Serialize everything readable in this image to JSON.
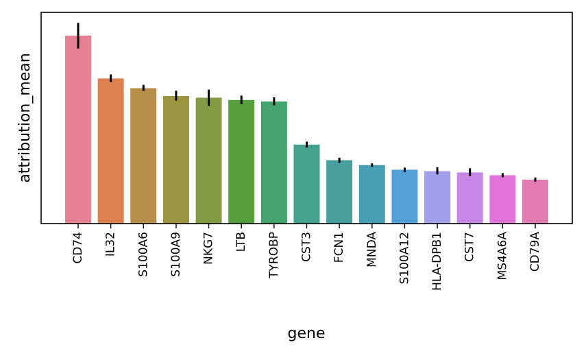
{
  "chart_data": {
    "type": "bar",
    "xlabel": "gene",
    "ylabel": "attribution_mean",
    "ylim": [
      0,
      1.0
    ],
    "y_ticks_shown": false,
    "grid": false,
    "legend": "none",
    "error_bars": true,
    "categories": [
      "CD74",
      "IL32",
      "S100A6",
      "S100A9",
      "NKG7",
      "LTB",
      "TYROBP",
      "CST3",
      "FCN1",
      "MNDA",
      "S100A12",
      "HLA-DPB1",
      "CST7",
      "MS4A6A",
      "CD79A"
    ],
    "values": [
      0.89,
      0.687,
      0.641,
      0.604,
      0.596,
      0.585,
      0.578,
      0.374,
      0.3,
      0.277,
      0.255,
      0.248,
      0.242,
      0.229,
      0.208
    ],
    "error_low": [
      0.829,
      0.67,
      0.628,
      0.582,
      0.557,
      0.565,
      0.56,
      0.36,
      0.287,
      0.268,
      0.244,
      0.233,
      0.225,
      0.219,
      0.199
    ],
    "error_high": [
      0.95,
      0.706,
      0.657,
      0.629,
      0.634,
      0.606,
      0.598,
      0.388,
      0.312,
      0.285,
      0.265,
      0.266,
      0.262,
      0.239,
      0.218
    ],
    "colors": [
      "#e68193",
      "#dc814d",
      "#b88f48",
      "#9f9440",
      "#849a42",
      "#55a03c",
      "#44a46e",
      "#44a18c",
      "#469f9c",
      "#489fb4",
      "#53a0db",
      "#a29feb",
      "#c687e6",
      "#e074d9",
      "#e27bb1"
    ]
  }
}
